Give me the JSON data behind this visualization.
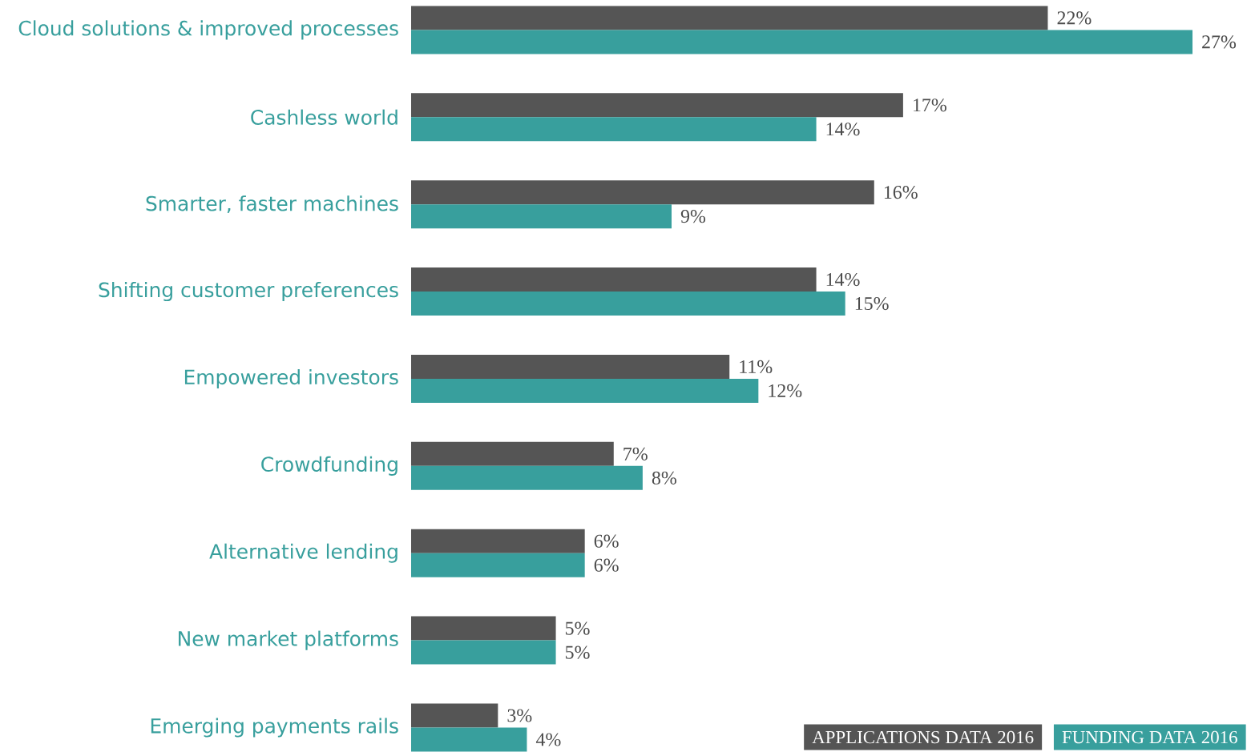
{
  "chart_data": {
    "type": "bar",
    "orientation": "horizontal",
    "categories": [
      "Cloud solutions & improved processes",
      "Cashless world",
      "Smarter, faster machines",
      "Shifting customer preferences",
      "Empowered investors",
      "Crowdfunding",
      "Alternative lending",
      "New market platforms",
      "Emerging payments rails"
    ],
    "series": [
      {
        "name": "APPLICATIONS DATA 2016",
        "color": "#555555",
        "values": [
          22,
          17,
          16,
          14,
          11,
          7,
          6,
          5,
          3
        ],
        "value_labels": [
          "22%",
          "17%",
          "16%",
          "14%",
          "11%",
          "7%",
          "6%",
          "5%",
          "3%"
        ]
      },
      {
        "name": "FUNDING DATA 2016",
        "color": "#389f9d",
        "values": [
          27,
          14,
          9,
          15,
          12,
          8,
          6,
          5,
          4
        ],
        "value_labels": [
          "27%",
          "14%",
          "9%",
          "15%",
          "12%",
          "8%",
          "6%",
          "5%",
          "4%"
        ]
      }
    ],
    "tick_labels": "y",
    "grid": false,
    "legend": "bottom right"
  }
}
